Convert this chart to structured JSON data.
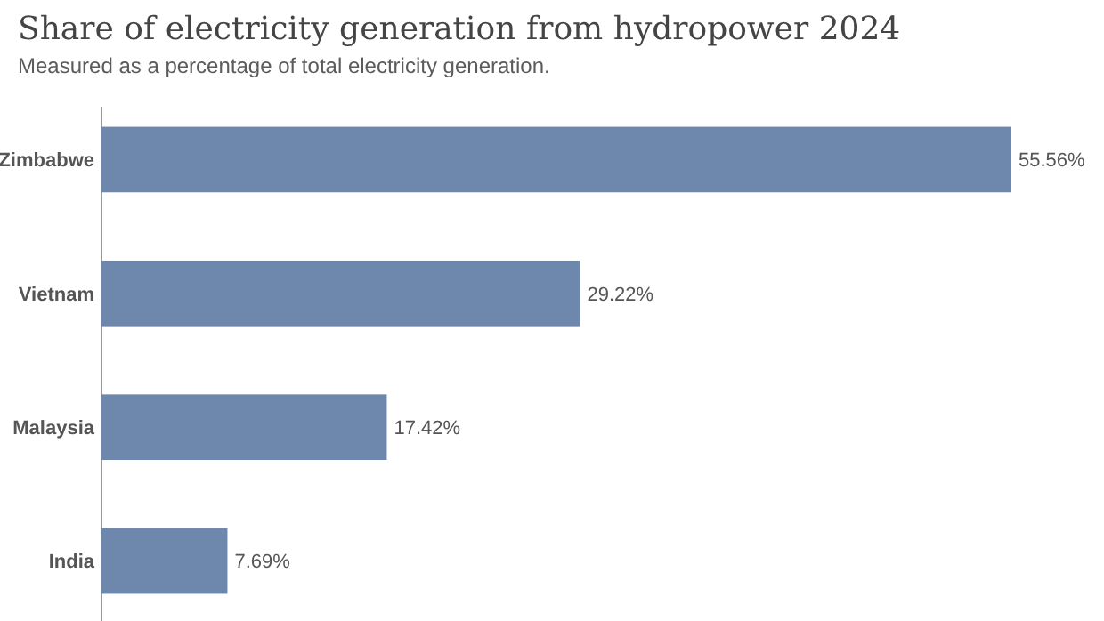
{
  "chart_data": {
    "type": "bar",
    "orientation": "horizontal",
    "title": "Share of electricity generation from hydropower 2024",
    "subtitle": "Measured as a percentage of total electricity generation.",
    "categories": [
      "Zimbabwe",
      "Vietnam",
      "Malaysia",
      "India"
    ],
    "values": [
      55.56,
      29.22,
      17.42,
      7.69
    ],
    "value_labels": [
      "55.56%",
      "29.22%",
      "17.42%",
      "7.69%"
    ],
    "color": "#6d87ad"
  }
}
